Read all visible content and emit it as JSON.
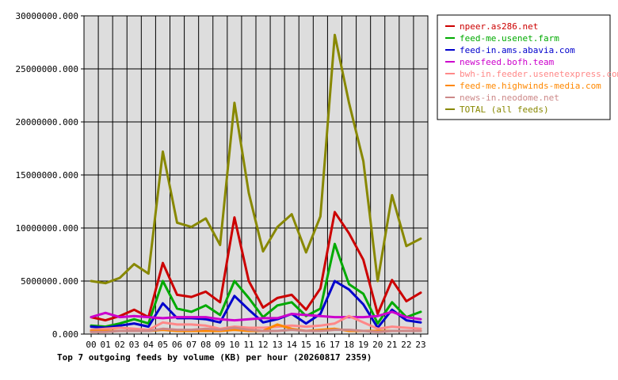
{
  "chart_data": {
    "type": "line",
    "title": "Top 7 outgoing feeds by volume (KB) per hour (20260817 2359)",
    "x": [
      "00",
      "01",
      "02",
      "03",
      "04",
      "05",
      "06",
      "07",
      "08",
      "09",
      "10",
      "11",
      "12",
      "13",
      "14",
      "15",
      "16",
      "17",
      "18",
      "19",
      "20",
      "21",
      "22",
      "23"
    ],
    "y_ticks": [
      "0.000",
      "5000000.000",
      "10000000.000",
      "15000000.000",
      "20000000.000",
      "25000000.000",
      "30000000.000"
    ],
    "ylim": [
      0,
      30000000
    ],
    "grid": true,
    "legend_position": "top-right",
    "series": [
      {
        "name": "npeer.as286.net",
        "color": "#cc0000",
        "values": [
          1600000,
          1300000,
          1700000,
          2300000,
          1600000,
          6700000,
          3700000,
          3500000,
          4000000,
          3000000,
          11000000,
          5000000,
          2500000,
          3400000,
          3700000,
          2300000,
          4300000,
          11500000,
          9500000,
          7000000,
          1900000,
          5100000,
          3100000,
          3900000
        ]
      },
      {
        "name": "feed-me.usenet.farm",
        "color": "#00aa00",
        "values": [
          800000,
          700000,
          1000000,
          1400000,
          1000000,
          5000000,
          2400000,
          2100000,
          2700000,
          1800000,
          5000000,
          3400000,
          1600000,
          2700000,
          3000000,
          1700000,
          2400000,
          8500000,
          4700000,
          3800000,
          1000000,
          3000000,
          1600000,
          2100000
        ]
      },
      {
        "name": "feed-in.ams.abavia.com",
        "color": "#0000cc",
        "values": [
          700000,
          600000,
          800000,
          1000000,
          700000,
          2900000,
          1500000,
          1500000,
          1400000,
          1100000,
          3600000,
          2300000,
          1100000,
          1400000,
          1900000,
          1000000,
          1900000,
          5000000,
          4200000,
          2800000,
          600000,
          2300000,
          1300000,
          1100000
        ]
      },
      {
        "name": "newsfeed.bofh.team",
        "color": "#cc00cc",
        "values": [
          1600000,
          2000000,
          1600000,
          1700000,
          1600000,
          1500000,
          1600000,
          1600000,
          1600000,
          1400000,
          1300000,
          1400000,
          1500000,
          1500000,
          1900000,
          1800000,
          1700000,
          1600000,
          1600000,
          1600000,
          1700000,
          2100000,
          1600000,
          1400000
        ]
      },
      {
        "name": "bwh-in.feeder.usenetexpress.com",
        "color": "#ff8888",
        "values": [
          400000,
          500000,
          600000,
          500000,
          400000,
          1100000,
          900000,
          900000,
          800000,
          500000,
          700000,
          600000,
          600000,
          700000,
          800000,
          700000,
          800000,
          1000000,
          1700000,
          1100000,
          500000,
          700000,
          600000,
          500000
        ]
      },
      {
        "name": "feed-me.highwinds-media.com",
        "color": "#ff8800",
        "values": [
          300000,
          300000,
          300000,
          300000,
          300000,
          400000,
          300000,
          300000,
          300000,
          300000,
          400000,
          300000,
          300000,
          900000,
          500000,
          300000,
          400000,
          500000,
          300000,
          300000,
          300000,
          300000,
          300000,
          300000
        ]
      },
      {
        "name": "news-in.neodome.net",
        "color": "#cc8888",
        "values": [
          200000,
          200000,
          300000,
          300000,
          300000,
          500000,
          400000,
          400000,
          500000,
          400000,
          600000,
          400000,
          300000,
          300000,
          400000,
          300000,
          300000,
          400000,
          400000,
          300000,
          200000,
          300000,
          300000,
          300000
        ]
      },
      {
        "name": "TOTAL (all feeds)",
        "color": "#888800",
        "values": [
          5000000,
          4800000,
          5300000,
          6600000,
          5700000,
          17200000,
          10500000,
          10100000,
          10900000,
          8400000,
          21800000,
          13300000,
          7800000,
          10100000,
          11300000,
          7700000,
          11100000,
          28200000,
          21800000,
          16300000,
          5000000,
          13100000,
          8300000,
          9000000
        ]
      }
    ]
  }
}
